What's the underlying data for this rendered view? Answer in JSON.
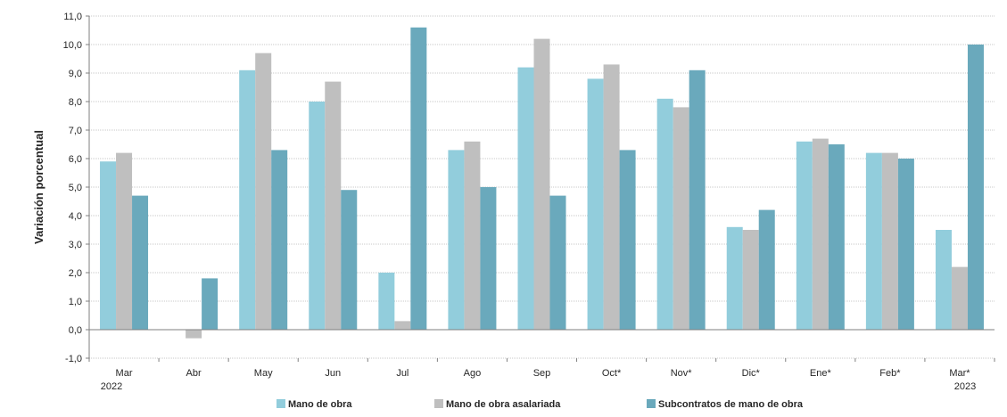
{
  "chart_data": {
    "type": "bar",
    "title": "",
    "xlabel": "",
    "ylabel": "Variación porcentual",
    "categories": [
      "Mar",
      "Abr",
      "May",
      "Jun",
      "Jul",
      "Ago",
      "Sep",
      "Oct*",
      "Nov*",
      "Dic*",
      "Ene*",
      "Feb*",
      "Mar*"
    ],
    "year_labels": [
      {
        "category_index": 0,
        "text": "2022"
      },
      {
        "category_index": 12,
        "text": "2023"
      }
    ],
    "ylim": [
      -1.0,
      11.0
    ],
    "yticks": [
      "-1,0",
      "0,0",
      "1,0",
      "2,0",
      "3,0",
      "4,0",
      "5,0",
      "6,0",
      "7,0",
      "8,0",
      "9,0",
      "10,0",
      "11,0"
    ],
    "grid": true,
    "legend_position": "bottom",
    "series": [
      {
        "name": "Mano de obra",
        "color": "#92CDDC",
        "values": [
          5.9,
          null,
          9.1,
          8.0,
          2.0,
          6.3,
          9.2,
          8.8,
          8.1,
          3.6,
          6.6,
          6.2,
          3.5
        ]
      },
      {
        "name": "Mano de obra asalariada",
        "color": "#BFBFBF",
        "values": [
          6.2,
          -0.3,
          9.7,
          8.7,
          0.3,
          6.6,
          10.2,
          9.3,
          7.8,
          3.5,
          6.7,
          6.2,
          2.2
        ]
      },
      {
        "name": "Subcontratos de mano de obra",
        "color": "#6AA9BC",
        "values": [
          4.7,
          1.8,
          6.3,
          4.9,
          10.6,
          5.0,
          4.7,
          6.3,
          9.1,
          4.2,
          6.5,
          6.0,
          10.0
        ]
      }
    ]
  }
}
